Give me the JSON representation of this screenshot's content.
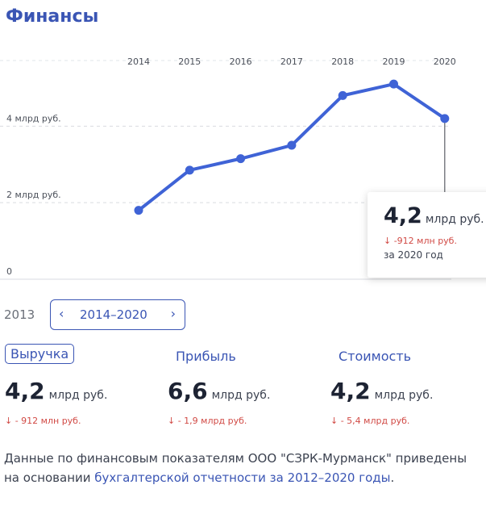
{
  "header": {
    "title": "Финансы"
  },
  "chart_data": {
    "type": "line",
    "categories": [
      "2014",
      "2015",
      "2016",
      "2017",
      "2018",
      "2019",
      "2020"
    ],
    "values": [
      1.8,
      2.85,
      3.15,
      3.5,
      4.8,
      5.1,
      4.2
    ],
    "y_ticks": [
      {
        "value": 0,
        "label": "0"
      },
      {
        "value": 2,
        "label": "2 млрд руб."
      },
      {
        "value": 4,
        "label": "4 млрд руб."
      }
    ],
    "ylim": [
      0,
      6.2
    ],
    "grid": "horizontal dashed",
    "color": "#3f63d6"
  },
  "tooltip": {
    "value": "4,2",
    "unit": "млрд руб.",
    "change": "↓ -912 млн руб.",
    "period": "за 2020 год"
  },
  "period_selector": {
    "prev_year": "2013",
    "label": "2014–2020",
    "prev_icon": "chevron-left-icon",
    "next_icon": "chevron-right-icon"
  },
  "metrics": [
    {
      "tab": "Выручка",
      "value": "4,2",
      "unit": "млрд руб.",
      "change": "↓ - 912 млн руб."
    },
    {
      "tab": "Прибыль",
      "value": "6,6",
      "unit": "млрд руб.",
      "change": "↓ - 1,9 млрд руб."
    },
    {
      "tab": "Стоимость",
      "value": "4,2",
      "unit": "млрд руб.",
      "change": "↓ - 5,4 млрд руб."
    }
  ],
  "note": {
    "text": "Данные по финансовым показателям ООО \"СЗРК-Мурманск\" приведены на основании ",
    "link": "бухгалтерской отчетности за 2012–2020 годы",
    "end": "."
  }
}
